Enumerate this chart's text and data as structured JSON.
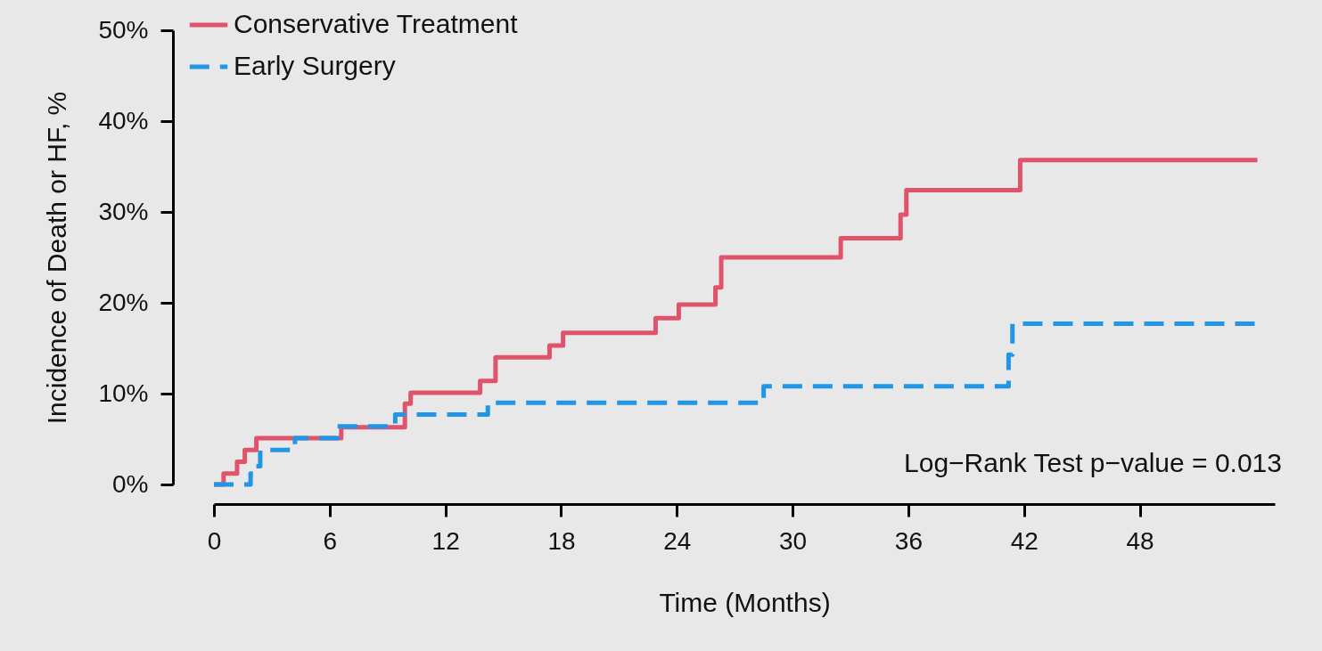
{
  "chart_data": {
    "type": "step",
    "xlabel": "Time (Months)",
    "ylabel": "Incidence of Death or HF, %",
    "xlim": [
      0,
      55
    ],
    "xticks": [
      0,
      6,
      12,
      18,
      24,
      30,
      36,
      42,
      48
    ],
    "ylim": [
      0,
      50
    ],
    "yticks": [
      {
        "value": 0,
        "label": "0%"
      },
      {
        "value": 10,
        "label": "10%"
      },
      {
        "value": 20,
        "label": "20%"
      },
      {
        "value": 30,
        "label": "30%"
      },
      {
        "value": 40,
        "label": "40%"
      },
      {
        "value": 50,
        "label": "50%"
      }
    ],
    "grid": false,
    "legend": "top left",
    "annotations": [
      "Log−Rank Test p−value = 0.013"
    ],
    "series": [
      {
        "name": "Conservative Treatment",
        "color": "#e0546b",
        "line_style": "solid",
        "x": [
          0,
          0.5,
          1.2,
          1.6,
          2.2,
          6.6,
          9.9,
          10.2,
          13.8,
          14.6,
          17.4,
          18.1,
          22.9,
          24.1,
          26.0,
          26.3,
          32.5,
          35.6,
          35.9,
          41.8,
          54.1
        ],
        "values": [
          0,
          1.2,
          2.5,
          3.8,
          5.1,
          6.3,
          8.9,
          10.1,
          11.4,
          14.0,
          15.3,
          16.7,
          18.3,
          19.8,
          21.7,
          25.0,
          27.1,
          29.7,
          32.4,
          35.7,
          35.7
        ]
      },
      {
        "name": "Early Surgery",
        "color": "#2196e6",
        "line_style": "dashed",
        "x": [
          0,
          1.9,
          2.2,
          2.4,
          4.2,
          6.4,
          9.4,
          14.2,
          28.5,
          41.2,
          41.4,
          54.1
        ],
        "values": [
          0,
          1.2,
          2.0,
          3.8,
          5.1,
          6.4,
          7.7,
          9.0,
          10.8,
          14.3,
          17.7,
          17.7
        ]
      }
    ]
  }
}
